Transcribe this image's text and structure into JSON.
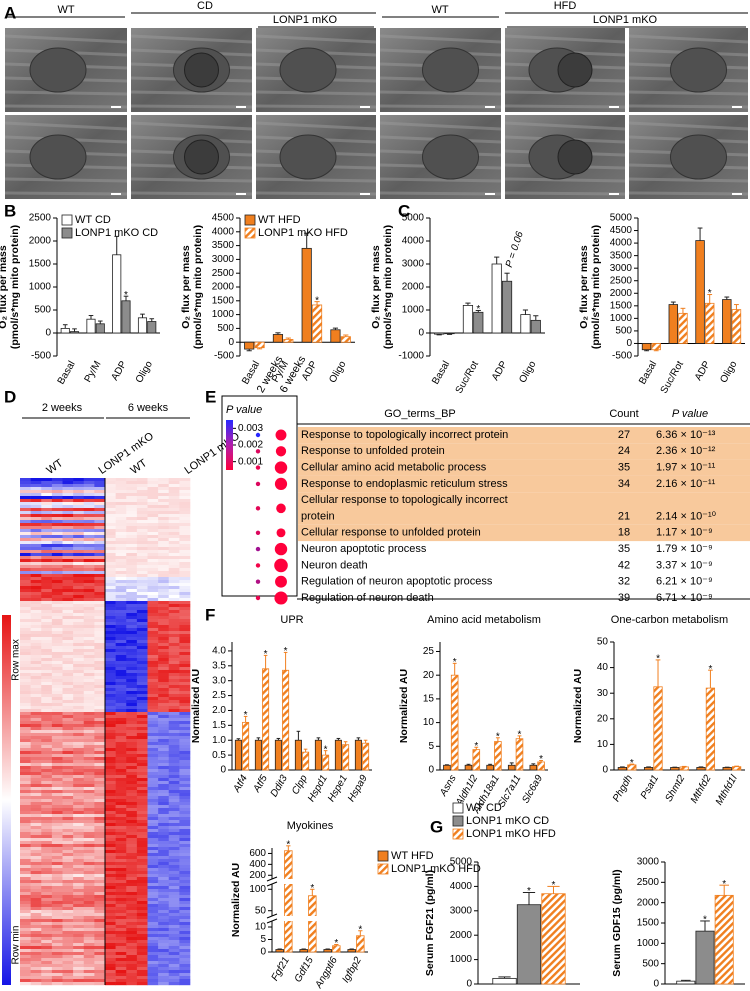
{
  "panel_labels": [
    "A",
    "B",
    "C",
    "D",
    "E",
    "F",
    "G"
  ],
  "micrographs": {
    "labels": [
      "WT",
      "CD",
      "LONP1 mKO",
      "WT",
      "HFD",
      "LONP1 mKO"
    ]
  },
  "heatmap": {
    "groups": [
      "2 weeks",
      "6 weeks"
    ],
    "columns": [
      "WT",
      "LONP1 mKO",
      "WT",
      "LONP1 mKO"
    ],
    "scale_max": "Row max",
    "scale_min": "Row min"
  },
  "go_table": {
    "colorbar_title": "P value",
    "colorbar_ticks": [
      0.003,
      0.002,
      0.001
    ],
    "clim": [
      0.0005,
      0.0035
    ],
    "columns": [
      "2 weeks",
      "6 weeks"
    ],
    "headers": [
      "GO_terms_BP",
      "Count",
      "P value"
    ],
    "rows": [
      {
        "term": "Response to topologically incorrect protein",
        "count": 27,
        "p": {
          "value": 6.36e-13,
          "label": "6.36 × 10⁻¹³"
        },
        "p_2w": 0.0035,
        "highlight": true
      },
      {
        "term": "Response to unfolded protein",
        "count": 24,
        "p": {
          "value": 2.36e-12,
          "label": "2.36 × 10⁻¹²"
        },
        "p_2w": 0.001,
        "highlight": true
      },
      {
        "term": "Cellular amino acid metabolic process",
        "count": 35,
        "p": {
          "value": 1.97e-11,
          "label": "1.97 × 10⁻¹¹"
        },
        "p_2w": 0.0008,
        "highlight": true
      },
      {
        "term": "Response to endoplasmic reticulum stress",
        "count": 34,
        "p": {
          "value": 2.16e-11,
          "label": "2.16 × 10⁻¹¹"
        },
        "p_2w": 0.001,
        "highlight": true
      },
      {
        "term": "Cellular response to topologically incorrect protein",
        "count": 21,
        "p": {
          "value": 2.14e-10,
          "label": "2.14 × 10⁻¹⁰"
        },
        "p_2w": 0.0009,
        "highlight": true
      },
      {
        "term": "Cellular response to unfolded protein",
        "count": 18,
        "p": {
          "value": 1.17e-09,
          "label": "1.17 × 10⁻⁹"
        },
        "p_2w": 0.001,
        "highlight": true
      },
      {
        "term": "Neuron apoptotic process",
        "count": 35,
        "p": {
          "value": 1.79e-09,
          "label": "1.79 × 10⁻⁹"
        },
        "p_2w": 0.0018,
        "highlight": false
      },
      {
        "term": "Neuron death",
        "count": 42,
        "p": {
          "value": 3.37e-09,
          "label": "3.37 × 10⁻⁹"
        },
        "p_2w": 0.0007,
        "highlight": false
      },
      {
        "term": "Regulation of neuron apoptotic process",
        "count": 32,
        "p": {
          "value": 6.21e-09,
          "label": "6.21 × 10⁻⁹"
        },
        "p_2w": 0.0016,
        "highlight": false
      },
      {
        "term": "Regulation of neuron death",
        "count": 39,
        "p": {
          "value": 6.71e-09,
          "label": "6.71 × 10⁻⁹"
        },
        "p_2w": 0.0008,
        "highlight": false
      }
    ]
  },
  "chart_data": [
    {
      "type": "bar",
      "ylabel": [
        "O₂ flux per mass",
        "(pmol/s*mg mito protein)"
      ],
      "legend": "upper left",
      "categories": [
        "Basal",
        "Py/M",
        "ADP",
        "Oligo"
      ],
      "ylim": [
        -500,
        2500
      ],
      "yticks": [
        -500,
        0,
        500,
        1000,
        1500,
        2000,
        2500
      ],
      "series": [
        {
          "name": "WT CD",
          "color": "#ffffff",
          "values": [
            100,
            300,
            1700,
            330
          ],
          "errors": [
            80,
            80,
            400,
            80
          ]
        },
        {
          "name": "LONP1 mKO CD",
          "color": "#8c8c8c",
          "values": [
            30,
            200,
            700,
            250
          ],
          "errors": [
            60,
            60,
            100,
            60
          ],
          "annotations": [
            null,
            null,
            "*",
            null
          ]
        }
      ]
    },
    {
      "type": "bar",
      "ylabel": [
        "O₂ flux per mass",
        "(pmol/s*mg mito protein)"
      ],
      "legend": "upper left",
      "categories": [
        "Basal",
        "Py/M",
        "ADP",
        "Oligo"
      ],
      "ylim": [
        -500,
        4500
      ],
      "yticks": [
        -500,
        0,
        500,
        1000,
        1500,
        2000,
        2500,
        3000,
        3500,
        4000,
        4500
      ],
      "series": [
        {
          "name": "WT HFD",
          "color": "#f07f1f",
          "values": [
            -250,
            280,
            3400,
            450
          ],
          "errors": [
            60,
            60,
            550,
            60
          ]
        },
        {
          "name": "LONP1 mKO HFD",
          "color": "#f07f1f",
          "pattern": "hatch",
          "values": [
            -200,
            100,
            1350,
            200
          ],
          "errors": [
            40,
            50,
            120,
            60
          ],
          "annotations": [
            null,
            null,
            "*",
            null
          ]
        }
      ]
    },
    {
      "type": "bar",
      "ylabel": [
        "O₂ flux per mass",
        "(pmol/s*mg mito protein)"
      ],
      "categories": [
        "Basal",
        "Suc/Rot",
        "ADP",
        "Oligo"
      ],
      "ylim": [
        -1000,
        5000
      ],
      "yticks": [
        -1000,
        0,
        1000,
        2000,
        3000,
        4000,
        5000
      ],
      "series": [
        {
          "color": "#ffffff",
          "values": [
            -50,
            1200,
            3000,
            800
          ],
          "errors": [
            30,
            100,
            300,
            200
          ]
        },
        {
          "color": "#8c8c8c",
          "values": [
            -30,
            900,
            2250,
            550
          ],
          "errors": [
            30,
            80,
            350,
            200
          ],
          "annotations": [
            null,
            "*",
            "P = 0.06",
            null
          ]
        }
      ]
    },
    {
      "type": "bar",
      "ylabel": [
        "O₂ flux per mass",
        "(pmol/s*mg mito protein)"
      ],
      "categories": [
        "Basal",
        "Suc/Rot",
        "ADP",
        "Oligo"
      ],
      "ylim": [
        -500,
        5000
      ],
      "yticks": [
        -500,
        0,
        500,
        1000,
        1500,
        2000,
        2500,
        3000,
        3500,
        4000,
        4500,
        5000
      ],
      "series": [
        {
          "color": "#f07f1f",
          "values": [
            -250,
            1550,
            4100,
            1750
          ],
          "errors": [
            40,
            100,
            500,
            100
          ]
        },
        {
          "color": "#f07f1f",
          "pattern": "hatch",
          "values": [
            -250,
            1200,
            1600,
            1350
          ],
          "errors": [
            40,
            200,
            350,
            200
          ],
          "annotations": [
            null,
            null,
            "*",
            null
          ]
        }
      ]
    },
    {
      "type": "bar",
      "title": "UPR",
      "ylabel": "Normalized AU",
      "categories": [
        "Atf4",
        "Atf5",
        "Ddit3",
        "Clpp",
        "Hspd1",
        "Hspe1",
        "Hspa9"
      ],
      "ylim": [
        0,
        4.3
      ],
      "yticks": [
        0,
        0.5,
        {
          "value": 1,
          "label": "1.0"
        },
        1.5,
        {
          "value": 2,
          "label": "2.0"
        },
        2.5,
        {
          "value": 3,
          "label": "3.0"
        },
        3.5,
        {
          "value": 4,
          "label": "4.0"
        }
      ],
      "series": [
        {
          "color": "#f07f1f",
          "values": [
            1,
            1,
            1,
            1,
            1,
            1,
            1
          ],
          "errors": [
            0.05,
            0.08,
            0.06,
            0.3,
            0.08,
            0.06,
            0.08
          ]
        },
        {
          "color": "#f07f1f",
          "pattern": "hatch",
          "values": [
            1.6,
            3.4,
            3.35,
            0.6,
            0.5,
            0.85,
            0.9
          ],
          "errors": [
            0.2,
            0.45,
            0.6,
            0.1,
            0.15,
            0.1,
            0.1
          ],
          "annotations": [
            "*",
            "*",
            "*",
            null,
            "*",
            null,
            null
          ]
        }
      ]
    },
    {
      "type": "bar",
      "title": "Amino acid metabolism",
      "ylabel": "Normalized AU",
      "categories": [
        "Asns",
        "Aldh1l2",
        "Aldh18a1",
        "Slc7a11",
        "Slc6a9"
      ],
      "ylim": [
        0,
        27
      ],
      "yticks": [
        0,
        5,
        10,
        15,
        20,
        25
      ],
      "series": [
        {
          "color": "#f07f1f",
          "values": [
            1,
            1,
            1,
            1,
            1
          ],
          "errors": [
            0.1,
            0.2,
            0.2,
            0.5,
            0.3
          ]
        },
        {
          "color": "#f07f1f",
          "pattern": "hatch",
          "values": [
            20,
            4.3,
            6,
            6.6,
            1.7
          ],
          "errors": [
            2.5,
            0.5,
            0.8,
            0.6,
            0.3
          ],
          "annotations": [
            "*",
            "*",
            "*",
            "*",
            "*"
          ]
        }
      ]
    },
    {
      "type": "bar",
      "title": "One-carbon metabolism",
      "ylabel": "Normalized AU",
      "categories": [
        "Phgdh",
        "Psat1",
        "Shmt2",
        "Mthfd2",
        "Mthfd1l"
      ],
      "ylim": [
        0,
        50
      ],
      "yticks": [
        0,
        10,
        20,
        30,
        40,
        50
      ],
      "series": [
        {
          "color": "#f07f1f",
          "values": [
            1,
            1,
            1,
            1,
            1
          ],
          "errors": [
            0.2,
            0.2,
            0.1,
            0.2,
            0.1
          ]
        },
        {
          "color": "#f07f1f",
          "pattern": "hatch",
          "values": [
            2,
            32.5,
            1.2,
            32,
            1.3
          ],
          "errors": [
            0.3,
            10.5,
            0.2,
            7,
            0.2
          ],
          "annotations": [
            "*",
            "*",
            null,
            "*",
            null
          ]
        }
      ]
    },
    {
      "type": "bar",
      "title": "Myokines",
      "ylabel": "Normalized AU",
      "legend": "right",
      "categories": [
        "Fgf21",
        "Gdf15",
        "Angptl6",
        "Igfbp2"
      ],
      "ylim": [
        0,
        700
      ],
      "segments": [
        [
          0,
          12
        ],
        [
          40,
          110
        ],
        [
          150,
          700
        ]
      ],
      "yticks": [
        0,
        5,
        10,
        50,
        100,
        200,
        400,
        600
      ],
      "series": [
        {
          "name": "WT HFD",
          "color": "#f07f1f",
          "values": [
            1,
            1,
            1,
            1
          ],
          "errors": [
            0.2,
            0.2,
            0.2,
            0.2
          ]
        },
        {
          "name": "LONP1 mKO HFD",
          "color": "#f07f1f",
          "pattern": "hatch",
          "values": [
            650,
            85,
            2.5,
            6.5
          ],
          "errors": [
            90,
            15,
            0.5,
            2
          ],
          "annotations": [
            "*",
            "*",
            "*",
            "*"
          ]
        }
      ]
    },
    {
      "type": "bar",
      "ylabel": "Serum FGF21 (pg/ml)",
      "legend": "above",
      "categories": [
        null
      ],
      "ylim": [
        0,
        5000
      ],
      "yticks": [
        0,
        1000,
        2000,
        3000,
        4000,
        5000
      ],
      "series": [
        {
          "name": "WT CD",
          "color": "#ffffff",
          "values": [
            230
          ],
          "errors": [
            60
          ]
        },
        {
          "name": "LONP1 mKO CD",
          "color": "#8c8c8c",
          "values": [
            3250
          ],
          "errors": [
            500
          ],
          "annotations": [
            "*"
          ]
        },
        {
          "name": "LONP1 mKO HFD",
          "color": "#f07f1f",
          "pattern": "hatch",
          "values": [
            3700
          ],
          "errors": [
            300
          ],
          "annotations": [
            "*"
          ]
        }
      ]
    },
    {
      "type": "bar",
      "ylabel": "Serum GDF15 (pg/ml)",
      "categories": [
        null
      ],
      "ylim": [
        0,
        3000
      ],
      "yticks": [
        0,
        500,
        1000,
        1500,
        2000,
        2500,
        3000
      ],
      "series": [
        {
          "color": "#ffffff",
          "values": [
            70
          ],
          "errors": [
            20
          ]
        },
        {
          "color": "#8c8c8c",
          "values": [
            1300
          ],
          "errors": [
            250
          ],
          "annotations": [
            "*"
          ]
        },
        {
          "color": "#f07f1f",
          "pattern": "hatch",
          "values": [
            2180
          ],
          "errors": [
            250
          ],
          "annotations": [
            "*"
          ]
        }
      ]
    }
  ]
}
